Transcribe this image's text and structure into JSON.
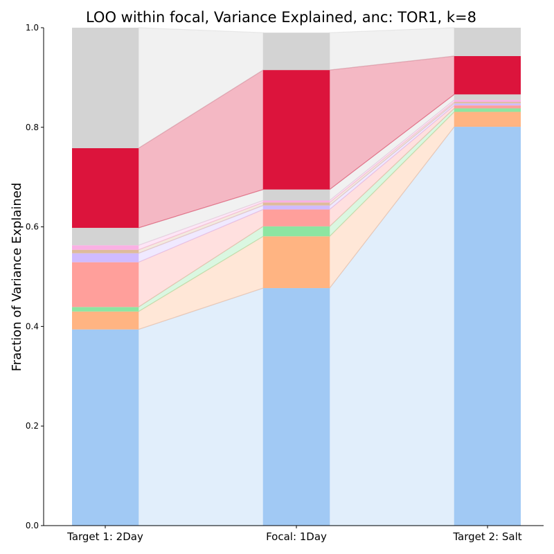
{
  "chart_data": {
    "type": "bar",
    "title": "LOO within focal, Variance Explained, anc: TOR1, k=8",
    "xlabel": "",
    "ylabel": "Fraction of Variance Explained",
    "ylim": [
      0,
      1
    ],
    "yticks": [
      "0.0",
      "0.2",
      "0.4",
      "0.6",
      "0.8",
      "1.0"
    ],
    "yticks_values": [
      0,
      0.2,
      0.4,
      0.6,
      0.8,
      1.0
    ],
    "categories": [
      "Target 1: 2Day",
      "Focal: 1Day",
      "Target 2: Salt"
    ],
    "stacked": true,
    "grid": false,
    "series": [
      {
        "color": "#a1c9f4",
        "values": [
          0.394,
          0.477,
          0.801
        ]
      },
      {
        "color": "#ffb482",
        "values": [
          0.036,
          0.104,
          0.03
        ]
      },
      {
        "color": "#8de5a1",
        "values": [
          0.009,
          0.02,
          0.007
        ]
      },
      {
        "color": "#ff9f9b",
        "values": [
          0.09,
          0.034,
          0.006
        ]
      },
      {
        "color": "#d0bbff",
        "values": [
          0.018,
          0.008,
          0.004
        ]
      },
      {
        "color": "#debb9b",
        "values": [
          0.007,
          0.006,
          0.003
        ]
      },
      {
        "color": "#fab0e4",
        "values": [
          0.009,
          0.004,
          0.004
        ]
      },
      {
        "color": "#d3d3d3",
        "values": [
          0.035,
          0.022,
          0.011
        ]
      },
      {
        "color": "#dc143c",
        "values": [
          0.16,
          0.24,
          0.077
        ]
      },
      {
        "color": "#d3d3d3",
        "values": [
          0.242,
          0.075,
          0.057
        ]
      }
    ]
  }
}
